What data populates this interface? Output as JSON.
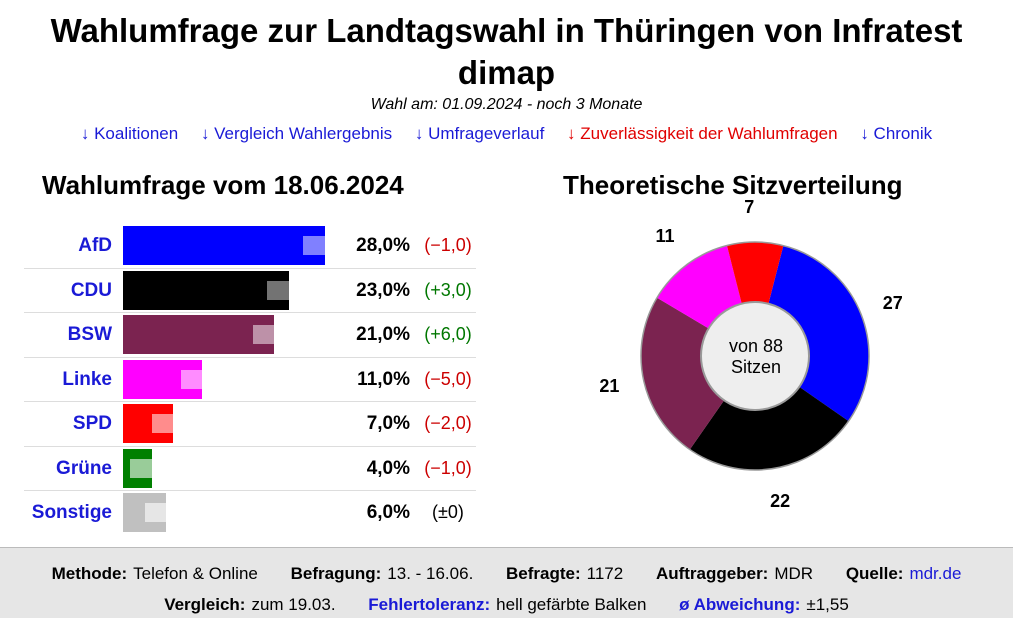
{
  "title": "Wahlumfrage zur Landtagswahl in Thüringen von Infratest dimap",
  "subtitle": "Wahl am: 01.09.2024 - noch 3 Monate",
  "nav": [
    {
      "label": "↓ Koalitionen",
      "color": "#1a1ad6"
    },
    {
      "label": "↓ Vergleich Wahlergebnis",
      "color": "#1a1ad6"
    },
    {
      "label": "↓ Umfrageverlauf",
      "color": "#1a1ad6"
    },
    {
      "label": "↓ Zuverlässigkeit der Wahlumfragen",
      "color": "#e00000"
    },
    {
      "label": "↓ Chronik",
      "color": "#1a1ad6"
    }
  ],
  "poll_heading": "Wahlumfrage vom 18.06.2024",
  "seats_heading": "Theoretische Sitzverteilung",
  "seats_center_line1": "von 88",
  "seats_center_line2": "Sitzen",
  "parties": [
    {
      "name": "AfD",
      "share": 28.0,
      "pct": "28,0%",
      "change": "(−1,0)",
      "change_color": "#cc0000",
      "color": "#0000ff",
      "tol_color": "rgba(255,255,255,0.5)",
      "seats": 27
    },
    {
      "name": "CDU",
      "share": 23.0,
      "pct": "23,0%",
      "change": "(+3,0)",
      "change_color": "#007700",
      "color": "#000000",
      "tol_color": "rgba(255,255,255,0.45)",
      "seats": 22
    },
    {
      "name": "BSW",
      "share": 21.0,
      "pct": "21,0%",
      "change": "(+6,0)",
      "change_color": "#007700",
      "color": "#7b2350",
      "tol_color": "rgba(255,255,255,0.5)",
      "seats": 21
    },
    {
      "name": "Linke",
      "share": 11.0,
      "pct": "11,0%",
      "change": "(−5,0)",
      "change_color": "#cc0000",
      "color": "#ff00ff",
      "tol_color": "rgba(255,255,255,0.55)",
      "seats": 11
    },
    {
      "name": "SPD",
      "share": 7.0,
      "pct": "7,0%",
      "change": "(−2,0)",
      "change_color": "#cc0000",
      "color": "#ff0000",
      "tol_color": "rgba(255,255,255,0.55)",
      "seats": 7
    },
    {
      "name": "Grüne",
      "share": 4.0,
      "pct": "4,0%",
      "change": "(−1,0)",
      "change_color": "#cc0000",
      "color": "#008000",
      "tol_color": "rgba(255,255,255,0.6)",
      "seats": 0
    },
    {
      "name": "Sonstige",
      "share": 6.0,
      "pct": "6,0%",
      "change": "(±0)",
      "change_color": "#000000",
      "color": "#c0c0c0",
      "tol_color": "rgba(255,255,255,0.6)",
      "seats": 0
    }
  ],
  "tolerance": 3.0,
  "footer": {
    "methode_label": "Methode:",
    "methode": "Telefon & Online",
    "befragung_label": "Befragung:",
    "befragung": "13. - 16.06.",
    "befragte_label": "Befragte:",
    "befragte": "1172",
    "auftrag_label": "Auftraggeber:",
    "auftrag": "MDR",
    "quelle_label": "Quelle:",
    "quelle": "mdr.de",
    "vergleich_label": "Vergleich:",
    "vergleich": "zum 19.03.",
    "fehler_label": "Fehlertoleranz:",
    "fehler": "hell gefärbte Balken",
    "abw_label": "ø Abweichung:",
    "abw": "±1,55"
  }
}
